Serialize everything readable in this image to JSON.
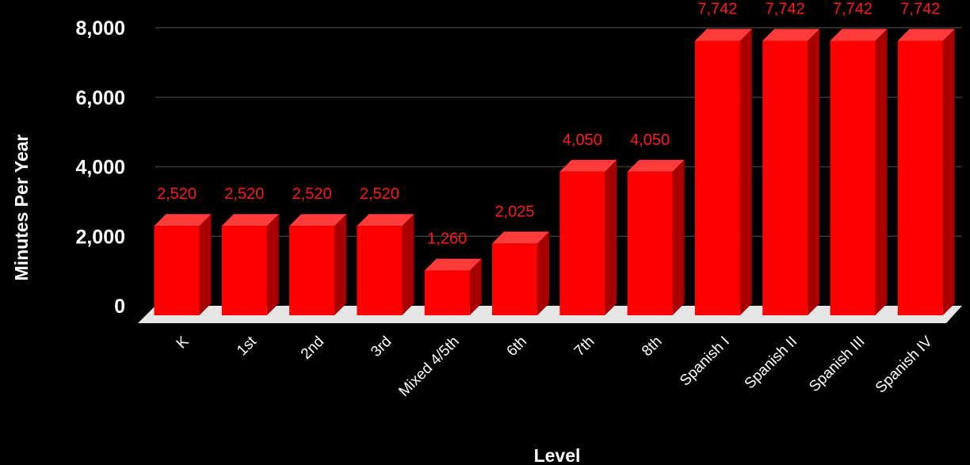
{
  "chart_data": {
    "type": "bar",
    "categories": [
      "K",
      "1st",
      "2nd",
      "3rd",
      "Mixed 4/5th",
      "6th",
      "7th",
      "8th",
      "Spanish I",
      "Spanish II",
      "Spanish III",
      "Spanish IV"
    ],
    "values": [
      2520,
      2520,
      2520,
      2520,
      1260,
      2025,
      4050,
      4050,
      7742,
      7742,
      7742,
      7742
    ],
    "data_labels": [
      "2,520",
      "2,520",
      "2,520",
      "2,520",
      "1,260",
      "2,025",
      "4,050",
      "4,050",
      "7,742",
      "7,742",
      "7,742",
      "7,742"
    ],
    "yticks": [
      0,
      2000,
      4000,
      6000,
      8000
    ],
    "ytick_labels": [
      "0",
      "2,000",
      "4,000",
      "6,000",
      "8,000"
    ],
    "ylim": [
      0,
      8000
    ],
    "xlabel": "Level",
    "ylabel": "Minutes Per Year",
    "grid": true,
    "bar_color": "#ff0000",
    "bar_top_color": "#ff3b3b",
    "bar_side_color": "#a80000",
    "label_color": "#ff1a1a",
    "floor_color": "#e6e6e6",
    "background": "#000000"
  }
}
